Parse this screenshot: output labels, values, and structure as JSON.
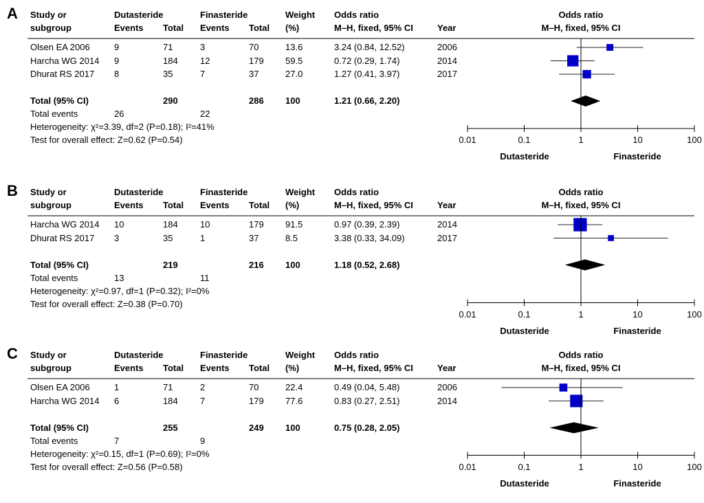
{
  "headers": {
    "study": [
      "Study or",
      "subgroup"
    ],
    "group1": "Dutasteride",
    "group2": "Finasteride",
    "events": "Events",
    "total": "Total",
    "weight": [
      "Weight",
      "(%)"
    ],
    "or": [
      "Odds ratio",
      "M–H, fixed, 95% CI"
    ],
    "year": "Year",
    "plot": [
      "Odds ratio",
      "M–H, fixed, 95% CI"
    ]
  },
  "colors": {
    "study_marker": "#0000c8",
    "diamond": "#000000",
    "lines": "#000000"
  },
  "chart_data": [
    {
      "type": "forest",
      "panel": "A",
      "x_scale": "log",
      "xlim": [
        0.01,
        100
      ],
      "xticks": [
        "0.01",
        "0.1",
        "1",
        "10",
        "100"
      ],
      "xlabel_left": "Dutasteride",
      "xlabel_right": "Finasteride",
      "studies": [
        {
          "name": "Olsen EA 2006",
          "e1": "9",
          "n1": "71",
          "e2": "3",
          "n2": "70",
          "weight": "13.6",
          "ci_text": "3.24 (0.84, 12.52)",
          "year": "2006",
          "or": 3.24,
          "lo": 0.84,
          "hi": 12.52
        },
        {
          "name": "Harcha WG 2014",
          "e1": "9",
          "n1": "184",
          "e2": "12",
          "n2": "179",
          "weight": "59.5",
          "ci_text": "0.72 (0.29, 1.74)",
          "year": "2014",
          "or": 0.72,
          "lo": 0.29,
          "hi": 1.74
        },
        {
          "name": "Dhurat RS 2017",
          "e1": "8",
          "n1": "35",
          "e2": "7",
          "n2": "37",
          "weight": "27.0",
          "ci_text": "1.27 (0.41, 3.97)",
          "year": "2017",
          "or": 1.27,
          "lo": 0.41,
          "hi": 3.97
        }
      ],
      "total": {
        "label": "Total (95% CI)",
        "n1": "290",
        "n2": "286",
        "weight": "100",
        "ci_text": "1.21 (0.66, 2.20)",
        "or": 1.21,
        "lo": 0.66,
        "hi": 2.2
      },
      "total_events": {
        "label": "Total events",
        "e1": "26",
        "e2": "22"
      },
      "heterogeneity": "Heterogeneity: χ²=3.39, df=2 (P=0.18); I²=41%",
      "overall": "Test for overall effect: Z=0.62 (P=0.54)"
    },
    {
      "type": "forest",
      "panel": "B",
      "x_scale": "log",
      "xlim": [
        0.01,
        100
      ],
      "xticks": [
        "0.01",
        "0.1",
        "1",
        "10",
        "100"
      ],
      "xlabel_left": "Dutasteride",
      "xlabel_right": "Finasteride",
      "studies": [
        {
          "name": "Harcha WG 2014",
          "e1": "10",
          "n1": "184",
          "e2": "10",
          "n2": "179",
          "weight": "91.5",
          "ci_text": "0.97 (0.39, 2.39)",
          "year": "2014",
          "or": 0.97,
          "lo": 0.39,
          "hi": 2.39
        },
        {
          "name": "Dhurat RS 2017",
          "e1": "3",
          "n1": "35",
          "e2": "1",
          "n2": "37",
          "weight": "8.5",
          "ci_text": "3.38 (0.33, 34.09)",
          "year": "2017",
          "or": 3.38,
          "lo": 0.33,
          "hi": 34.09
        }
      ],
      "total": {
        "label": "Total (95% CI)",
        "n1": "219",
        "n2": "216",
        "weight": "100",
        "ci_text": "1.18 (0.52, 2.68)",
        "or": 1.18,
        "lo": 0.52,
        "hi": 2.68
      },
      "total_events": {
        "label": "Total events",
        "e1": "13",
        "e2": "11"
      },
      "heterogeneity": "Heterogeneity: χ²=0.97, df=1 (P=0.32); I²=0%",
      "overall": "Test for overall effect: Z=0.38 (P=0.70)"
    },
    {
      "type": "forest",
      "panel": "C",
      "x_scale": "log",
      "xlim": [
        0.01,
        100
      ],
      "xticks": [
        "0.01",
        "0.1",
        "1",
        "10",
        "100"
      ],
      "xlabel_left": "Dutasteride",
      "xlabel_right": "Finasteride",
      "studies": [
        {
          "name": "Olsen EA 2006",
          "e1": "1",
          "n1": "71",
          "e2": "2",
          "n2": "70",
          "weight": "22.4",
          "ci_text": "0.49 (0.04, 5.48)",
          "year": "2006",
          "or": 0.49,
          "lo": 0.04,
          "hi": 5.48
        },
        {
          "name": "Harcha WG 2014",
          "e1": "6",
          "n1": "184",
          "e2": "7",
          "n2": "179",
          "weight": "77.6",
          "ci_text": "0.83 (0.27, 2.51)",
          "year": "2014",
          "or": 0.83,
          "lo": 0.27,
          "hi": 2.51
        }
      ],
      "total": {
        "label": "Total (95% CI)",
        "n1": "255",
        "n2": "249",
        "weight": "100",
        "ci_text": "0.75 (0.28, 2.05)",
        "or": 0.75,
        "lo": 0.28,
        "hi": 2.05
      },
      "total_events": {
        "label": "Total events",
        "e1": "7",
        "e2": "9"
      },
      "heterogeneity": "Heterogeneity: χ²=0.15, df=1 (P=0.69); I²=0%",
      "overall": "Test for overall effect: Z=0.56 (P=0.58)"
    }
  ]
}
